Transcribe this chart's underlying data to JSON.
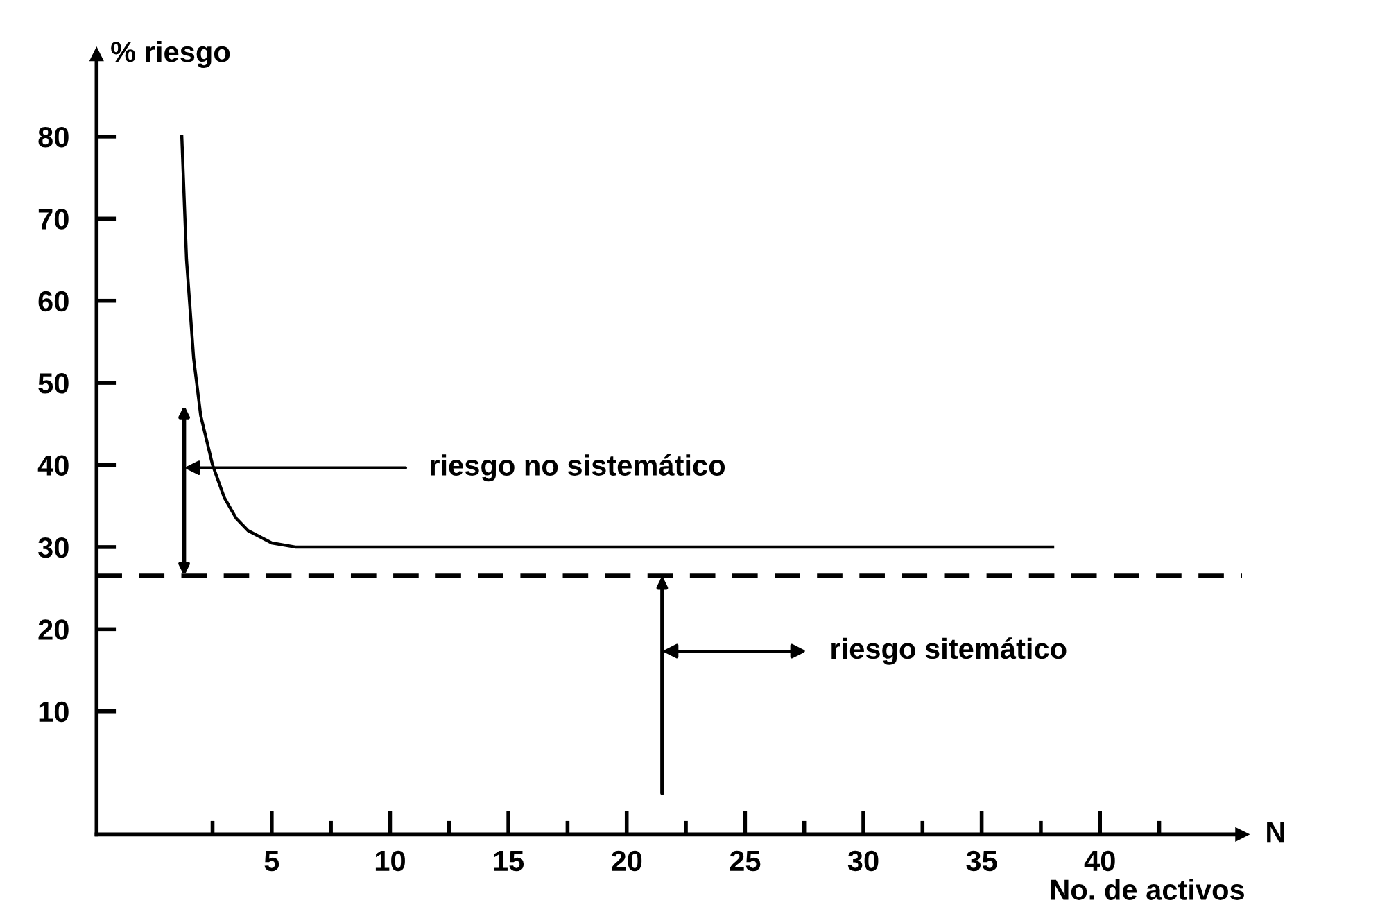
{
  "chart_data": {
    "type": "line",
    "ylabel": "% riesgo",
    "xlabel": "No. de activos",
    "series": [
      {
        "color": "#000000",
        "x": [
          1.2,
          1.4,
          1.7,
          2.0,
          2.5,
          3.0,
          3.5,
          4.0,
          5.0,
          6.0,
          10,
          20,
          30,
          38
        ],
        "values": [
          80,
          65,
          53,
          46,
          40,
          36,
          33.5,
          32,
          30.5,
          30,
          30,
          30,
          30,
          30
        ]
      }
    ],
    "xlim": [
      -2.4,
      46
    ],
    "ylim": [
      -5,
      90
    ],
    "xticks": [
      {
        "value": 2.5,
        "label": null
      },
      5,
      {
        "value": 7.5,
        "label": null
      },
      10,
      {
        "value": 12.5,
        "label": null
      },
      15,
      {
        "value": 17.5,
        "label": null
      },
      20,
      {
        "value": 22.5,
        "label": null
      },
      25,
      {
        "value": 27.5,
        "label": null
      },
      30,
      {
        "value": 32.5,
        "label": null
      },
      35,
      {
        "value": 37.5,
        "label": null
      },
      40,
      {
        "value": 42.5,
        "label": null
      }
    ],
    "yticks": [
      10,
      20,
      30,
      40,
      50,
      60,
      70,
      80
    ],
    "ref_lines": [
      {
        "axis": "y",
        "value": 26.5,
        "label": null,
        "color": "#000000",
        "line_style": "dashed"
      }
    ],
    "annotations": [
      "riesgo no sistemático",
      "riesgo sitemático",
      "N"
    ],
    "marker": "none",
    "line_style": "solid",
    "grid": false,
    "legend": false
  }
}
